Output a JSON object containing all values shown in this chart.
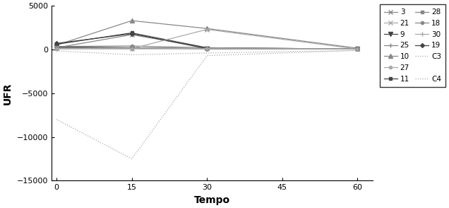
{
  "x": [
    0,
    15,
    30,
    60
  ],
  "series": {
    "3": [
      200,
      1700,
      200,
      50
    ],
    "9": [
      300,
      200,
      100,
      50
    ],
    "10": [
      500,
      3300,
      2400,
      150
    ],
    "11": [
      600,
      1900,
      200,
      50
    ],
    "18": [
      350,
      400,
      200,
      50
    ],
    "19": [
      700,
      1800,
      100,
      50
    ],
    "21": [
      150,
      100,
      2300,
      50
    ],
    "25": [
      100,
      100,
      100,
      50
    ],
    "27": [
      100,
      150,
      100,
      50
    ],
    "28": [
      200,
      200,
      100,
      50
    ],
    "30": [
      100,
      100,
      100,
      50
    ],
    "C3": [
      -150,
      -600,
      -400,
      -100
    ],
    "C4": [
      -8000,
      -12500,
      -700,
      -100
    ]
  },
  "markers": {
    "3": "x",
    "9": "v",
    "10": "^",
    "11": "s",
    "18": "o",
    "19": "D",
    "21": "x",
    "25": "+",
    "27": "o",
    "28": "s",
    "30": "+",
    "C3": "None",
    "C4": "None"
  },
  "linestyles": {
    "3": "-",
    "9": "-",
    "10": "-",
    "11": "-",
    "18": "-",
    "19": "-",
    "21": "-",
    "25": "-",
    "27": "-",
    "28": "-",
    "30": "-",
    "C3": "dotted",
    "C4": "dotted"
  },
  "colors": {
    "3": "#888888",
    "9": "#444444",
    "10": "#888888",
    "11": "#444444",
    "18": "#888888",
    "19": "#444444",
    "21": "#aaaaaa",
    "25": "#888888",
    "27": "#aaaaaa",
    "28": "#888888",
    "30": "#aaaaaa",
    "C3": "#aaaaaa",
    "C4": "#aaaaaa"
  },
  "marker_sizes": {
    "3": 4,
    "9": 4,
    "10": 4,
    "11": 3,
    "18": 3,
    "19": 3,
    "21": 4,
    "25": 5,
    "27": 3,
    "28": 3,
    "30": 5,
    "C3": 3,
    "C4": 3
  },
  "col1_labels": [
    "3",
    "9",
    "10",
    "11",
    "18",
    "19"
  ],
  "col2_labels": [
    "21",
    "25",
    "27",
    "28",
    "30",
    "C3",
    "C4"
  ],
  "ylabel": "UFR",
  "xlabel": "Tempo",
  "ylim": [
    -15000,
    5000
  ],
  "yticks": [
    -15000,
    -10000,
    -5000,
    0,
    5000
  ],
  "xticks": [
    0,
    15,
    30,
    45,
    60
  ],
  "xlim": [
    -1,
    63
  ]
}
